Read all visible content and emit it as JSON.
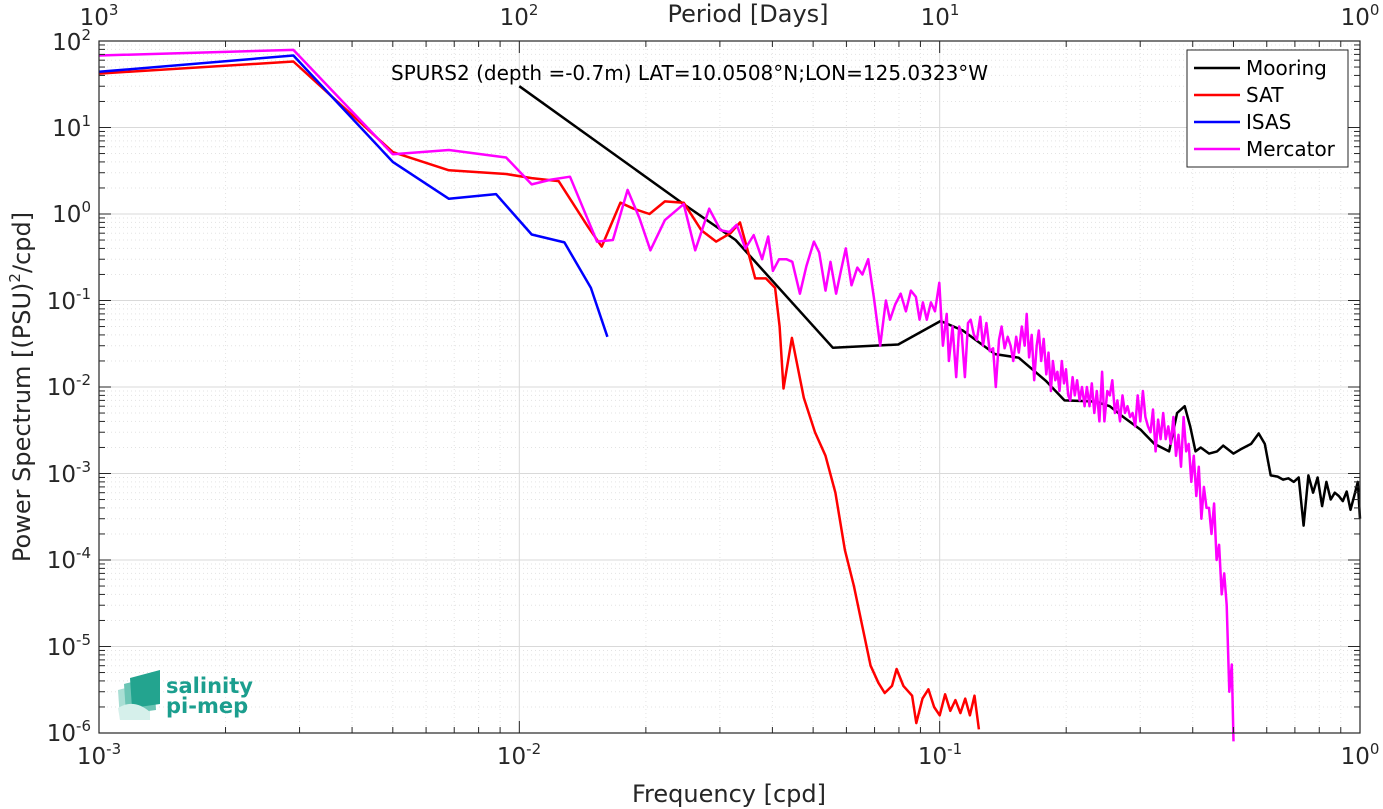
{
  "chart_data": {
    "type": "line",
    "annotation": "SPURS2 (depth =-0.7m) LAT=10.0508°N;LON=125.0323°W",
    "xlabel": "Frequency [cpd]",
    "ylabel": "Power Spectrum [(PSU)²/cpd]",
    "ylabel_parts": [
      "Power Spectrum [(PSU)",
      "2",
      "/cpd]"
    ],
    "top_label": "Period [Days]",
    "xscale": "log",
    "yscale": "log",
    "xlim": [
      0.001,
      1
    ],
    "ylim": [
      1e-06,
      100
    ],
    "grid": true,
    "legend_position": "top-right",
    "x_ticks": [
      {
        "base": "10",
        "exp": "-3"
      },
      {
        "base": "10",
        "exp": "-2"
      },
      {
        "base": "10",
        "exp": "-1"
      },
      {
        "base": "10",
        "exp": "0"
      }
    ],
    "y_ticks": [
      {
        "base": "10",
        "exp": "-6"
      },
      {
        "base": "10",
        "exp": "-5"
      },
      {
        "base": "10",
        "exp": "-4"
      },
      {
        "base": "10",
        "exp": "-3"
      },
      {
        "base": "10",
        "exp": "-2"
      },
      {
        "base": "10",
        "exp": "-1"
      },
      {
        "base": "10",
        "exp": "0"
      },
      {
        "base": "10",
        "exp": "1"
      },
      {
        "base": "10",
        "exp": "2"
      }
    ],
    "top_ticks": [
      {
        "base": "10",
        "exp": "3"
      },
      {
        "base": "10",
        "exp": "2"
      },
      {
        "base": "10",
        "exp": "1"
      },
      {
        "base": "10",
        "exp": "0"
      }
    ],
    "series": [
      {
        "name": "Mooring",
        "color": "#000000",
        "points": [
          [
            0.01,
            30
          ],
          [
            0.0246,
            1.3
          ],
          [
            0.0327,
            0.5
          ],
          [
            0.0557,
            0.0285
          ],
          [
            0.0797,
            0.031
          ],
          [
            0.1005,
            0.058
          ],
          [
            0.1135,
            0.045
          ],
          [
            0.1355,
            0.024
          ],
          [
            0.1542,
            0.0218
          ],
          [
            0.1789,
            0.0118
          ],
          [
            0.1981,
            0.007
          ],
          [
            0.2343,
            0.0068
          ],
          [
            0.2538,
            0.006
          ],
          [
            0.2734,
            0.0045
          ],
          [
            0.3008,
            0.0032
          ],
          [
            0.3243,
            0.0022
          ],
          [
            0.3515,
            0.0018
          ],
          [
            0.3672,
            0.005
          ],
          [
            0.3828,
            0.006
          ],
          [
            0.3945,
            0.0035
          ],
          [
            0.4062,
            0.0018
          ],
          [
            0.4179,
            0.002
          ],
          [
            0.4375,
            0.0017
          ],
          [
            0.457,
            0.0018
          ],
          [
            0.4726,
            0.0021
          ],
          [
            0.5,
            0.0017
          ],
          [
            0.5195,
            0.0019
          ],
          [
            0.5507,
            0.0022
          ],
          [
            0.5742,
            0.0029
          ],
          [
            0.5937,
            0.0022
          ],
          [
            0.6132,
            0.00095
          ],
          [
            0.6367,
            0.00092
          ],
          [
            0.6562,
            0.00085
          ],
          [
            0.6757,
            0.00088
          ],
          [
            0.6953,
            0.0008
          ],
          [
            0.7148,
            0.0009
          ],
          [
            0.7343,
            0.00025
          ],
          [
            0.7539,
            0.00095
          ],
          [
            0.7734,
            0.0006
          ],
          [
            0.7929,
            0.0009
          ],
          [
            0.8125,
            0.00042
          ],
          [
            0.832,
            0.0008
          ],
          [
            0.8515,
            0.0005
          ],
          [
            0.8711,
            0.0006
          ],
          [
            0.8906,
            0.00055
          ],
          [
            0.9101,
            0.00048
          ],
          [
            0.9296,
            0.00062
          ],
          [
            0.9492,
            0.00038
          ],
          [
            0.9687,
            0.00055
          ],
          [
            0.9882,
            0.0008
          ],
          [
            1.0,
            0.0003
          ]
        ]
      },
      {
        "name": "SAT",
        "color": "#ff0000",
        "points": [
          [
            0.001,
            42
          ],
          [
            0.0029,
            58
          ],
          [
            0.005,
            5.2
          ],
          [
            0.0068,
            3.2
          ],
          [
            0.0093,
            2.9
          ],
          [
            0.0107,
            2.6
          ],
          [
            0.0124,
            2.4
          ],
          [
            0.0146,
            0.7
          ],
          [
            0.0157,
            0.42
          ],
          [
            0.0174,
            1.35
          ],
          [
            0.0187,
            1.15
          ],
          [
            0.0204,
            1.0
          ],
          [
            0.0222,
            1.4
          ],
          [
            0.0246,
            1.35
          ],
          [
            0.0271,
            0.65
          ],
          [
            0.0294,
            0.48
          ],
          [
            0.0318,
            0.6
          ],
          [
            0.0335,
            0.8
          ],
          [
            0.0351,
            0.35
          ],
          [
            0.0364,
            0.18
          ],
          [
            0.0386,
            0.18
          ],
          [
            0.0406,
            0.14
          ],
          [
            0.0416,
            0.05
          ],
          [
            0.0425,
            0.0096
          ],
          [
            0.0445,
            0.037
          ],
          [
            0.0475,
            0.0075
          ],
          [
            0.0505,
            0.003
          ],
          [
            0.0535,
            0.0016
          ],
          [
            0.0565,
            0.0006
          ],
          [
            0.0595,
            0.00013
          ],
          [
            0.0625,
            5e-05
          ],
          [
            0.0655,
            1.7e-05
          ],
          [
            0.0685,
            6e-06
          ],
          [
            0.0715,
            3.8e-06
          ],
          [
            0.074,
            2.9e-06
          ],
          [
            0.077,
            3.5e-06
          ],
          [
            0.079,
            5.5e-06
          ],
          [
            0.082,
            3.5e-06
          ],
          [
            0.086,
            2.7e-06
          ],
          [
            0.088,
            1.3e-06
          ],
          [
            0.091,
            2.5e-06
          ],
          [
            0.094,
            3.2e-06
          ],
          [
            0.097,
            2e-06
          ],
          [
            0.1,
            1.6e-06
          ],
          [
            0.103,
            2.8e-06
          ],
          [
            0.106,
            1.8e-06
          ],
          [
            0.109,
            2.4e-06
          ],
          [
            0.112,
            1.7e-06
          ],
          [
            0.115,
            2.5e-06
          ],
          [
            0.118,
            1.6e-06
          ],
          [
            0.121,
            2.7e-06
          ],
          [
            0.124,
            1.1e-06
          ]
        ]
      },
      {
        "name": "ISAS",
        "color": "#0000ff",
        "points": [
          [
            0.001,
            44
          ],
          [
            0.0029,
            68
          ],
          [
            0.005,
            4.0
          ],
          [
            0.0068,
            1.5
          ],
          [
            0.0088,
            1.7
          ],
          [
            0.0107,
            0.58
          ],
          [
            0.0128,
            0.47
          ],
          [
            0.0148,
            0.14
          ],
          [
            0.0162,
            0.038
          ]
        ]
      },
      {
        "name": "Mercator",
        "color": "#ff00ff",
        "points": [
          [
            0.001,
            68
          ],
          [
            0.0029,
            79
          ],
          [
            0.005,
            4.9
          ],
          [
            0.0068,
            5.5
          ],
          [
            0.0093,
            4.5
          ],
          [
            0.0107,
            2.2
          ],
          [
            0.0119,
            2.5
          ],
          [
            0.0132,
            2.7
          ],
          [
            0.0153,
            0.48
          ],
          [
            0.0167,
            0.5
          ],
          [
            0.0181,
            1.9
          ],
          [
            0.0193,
            0.9
          ],
          [
            0.0205,
            0.38
          ],
          [
            0.0222,
            0.85
          ],
          [
            0.0246,
            1.3
          ],
          [
            0.0262,
            0.38
          ],
          [
            0.0283,
            1.15
          ],
          [
            0.0301,
            0.65
          ],
          [
            0.0316,
            0.62
          ],
          [
            0.0329,
            0.75
          ],
          [
            0.0345,
            0.4
          ],
          [
            0.0361,
            0.57
          ],
          [
            0.0378,
            0.3
          ],
          [
            0.0391,
            0.55
          ],
          [
            0.0401,
            0.22
          ],
          [
            0.0415,
            0.3
          ],
          [
            0.0432,
            0.3
          ],
          [
            0.0446,
            0.28
          ],
          [
            0.0465,
            0.12
          ],
          [
            0.0482,
            0.25
          ],
          [
            0.0502,
            0.48
          ],
          [
            0.0517,
            0.36
          ],
          [
            0.0535,
            0.13
          ],
          [
            0.055,
            0.28
          ],
          [
            0.0567,
            0.12
          ],
          [
            0.0582,
            0.22
          ],
          [
            0.0598,
            0.4
          ],
          [
            0.0617,
            0.15
          ],
          [
            0.0637,
            0.24
          ],
          [
            0.0655,
            0.2
          ],
          [
            0.0676,
            0.3
          ],
          [
            0.0697,
            0.11
          ],
          [
            0.0722,
            0.03
          ],
          [
            0.0745,
            0.1
          ],
          [
            0.0762,
            0.06
          ],
          [
            0.0784,
            0.09
          ],
          [
            0.0808,
            0.12
          ],
          [
            0.0831,
            0.075
          ],
          [
            0.0854,
            0.13
          ],
          [
            0.0878,
            0.11
          ],
          [
            0.0896,
            0.06
          ],
          [
            0.0912,
            0.095
          ],
          [
            0.0932,
            0.06
          ],
          [
            0.0953,
            0.095
          ],
          [
            0.0975,
            0.075
          ],
          [
            0.0998,
            0.16
          ],
          [
            0.1018,
            0.03
          ],
          [
            0.1039,
            0.07
          ],
          [
            0.1052,
            0.02
          ],
          [
            0.1073,
            0.05
          ],
          [
            0.1095,
            0.013
          ],
          [
            0.1113,
            0.05
          ],
          [
            0.1129,
            0.04
          ],
          [
            0.1148,
            0.013
          ],
          [
            0.1168,
            0.055
          ],
          [
            0.1185,
            0.06
          ],
          [
            0.1206,
            0.04
          ],
          [
            0.1226,
            0.035
          ],
          [
            0.1249,
            0.065
          ],
          [
            0.1268,
            0.03
          ],
          [
            0.1292,
            0.055
          ],
          [
            0.1315,
            0.026
          ],
          [
            0.134,
            0.028
          ],
          [
            0.136,
            0.01
          ],
          [
            0.1384,
            0.035
          ],
          [
            0.1404,
            0.05
          ],
          [
            0.1427,
            0.028
          ],
          [
            0.1452,
            0.038
          ],
          [
            0.1475,
            0.03
          ],
          [
            0.1497,
            0.02
          ],
          [
            0.1521,
            0.038
          ],
          [
            0.1543,
            0.025
          ],
          [
            0.1568,
            0.05
          ],
          [
            0.1593,
            0.03
          ],
          [
            0.1611,
            0.07
          ],
          [
            0.1632,
            0.022
          ],
          [
            0.1656,
            0.04
          ],
          [
            0.1678,
            0.012
          ],
          [
            0.1702,
            0.03
          ],
          [
            0.1721,
            0.045
          ],
          [
            0.1744,
            0.02
          ],
          [
            0.1768,
            0.036
          ],
          [
            0.1793,
            0.014
          ],
          [
            0.1815,
            0.025
          ],
          [
            0.1839,
            0.009
          ],
          [
            0.1859,
            0.02
          ],
          [
            0.1884,
            0.012
          ],
          [
            0.1906,
            0.015
          ],
          [
            0.1928,
            0.009
          ],
          [
            0.1952,
            0.02
          ],
          [
            0.1976,
            0.011
          ],
          [
            0.1998,
            0.016
          ],
          [
            0.2022,
            0.008
          ],
          [
            0.2045,
            0.007
          ],
          [
            0.2071,
            0.013
          ],
          [
            0.2096,
            0.008
          ],
          [
            0.2123,
            0.012
          ],
          [
            0.2152,
            0.007
          ],
          [
            0.2181,
            0.01
          ],
          [
            0.2212,
            0.006
          ],
          [
            0.224,
            0.01
          ],
          [
            0.2272,
            0.006
          ],
          [
            0.2301,
            0.011
          ],
          [
            0.2333,
            0.005
          ],
          [
            0.2365,
            0.009
          ],
          [
            0.2399,
            0.004
          ],
          [
            0.2434,
            0.015
          ],
          [
            0.2466,
            0.004
          ],
          [
            0.2505,
            0.009
          ],
          [
            0.254,
            0.008
          ],
          [
            0.2575,
            0.012
          ],
          [
            0.2612,
            0.005
          ],
          [
            0.2648,
            0.007
          ],
          [
            0.2685,
            0.004
          ],
          [
            0.2723,
            0.008
          ],
          [
            0.276,
            0.005
          ],
          [
            0.2798,
            0.006
          ],
          [
            0.2838,
            0.0045
          ],
          [
            0.2878,
            0.005
          ],
          [
            0.2919,
            0.0035
          ],
          [
            0.2959,
            0.008
          ],
          [
            0.3001,
            0.004
          ],
          [
            0.3044,
            0.009
          ],
          [
            0.3086,
            0.0045
          ],
          [
            0.313,
            0.0035
          ],
          [
            0.3174,
            0.003
          ],
          [
            0.3217,
            0.0055
          ],
          [
            0.3263,
            0.0018
          ],
          [
            0.3309,
            0.0042
          ],
          [
            0.3355,
            0.0025
          ],
          [
            0.3402,
            0.005
          ],
          [
            0.345,
            0.0025
          ],
          [
            0.3498,
            0.0035
          ],
          [
            0.3548,
            0.0022
          ],
          [
            0.3598,
            0.0045
          ],
          [
            0.3649,
            0.0016
          ],
          [
            0.37,
            0.0028
          ],
          [
            0.3752,
            0.0012
          ],
          [
            0.3805,
            0.0045
          ],
          [
            0.3859,
            0.0018
          ],
          [
            0.3913,
            0.0022
          ],
          [
            0.3968,
            0.0008
          ],
          [
            0.4023,
            0.0016
          ],
          [
            0.4079,
            0.00055
          ],
          [
            0.4136,
            0.0012
          ],
          [
            0.4194,
            0.0003
          ],
          [
            0.4253,
            0.0007
          ],
          [
            0.4313,
            0.0004
          ],
          [
            0.4373,
            0.0004
          ],
          [
            0.4434,
            0.0002
          ],
          [
            0.4496,
            0.00045
          ],
          [
            0.4559,
            0.0001
          ],
          [
            0.4622,
            0.00015
          ],
          [
            0.4687,
            4e-05
          ],
          [
            0.4753,
            7e-05
          ],
          [
            0.4819,
            3e-05
          ],
          [
            0.4886,
            3e-06
          ],
          [
            0.4954,
            6.2e-06
          ],
          [
            0.5,
            8e-07
          ]
        ]
      }
    ]
  },
  "logo": {
    "line1": "salinity",
    "line2": "pi-mep"
  }
}
